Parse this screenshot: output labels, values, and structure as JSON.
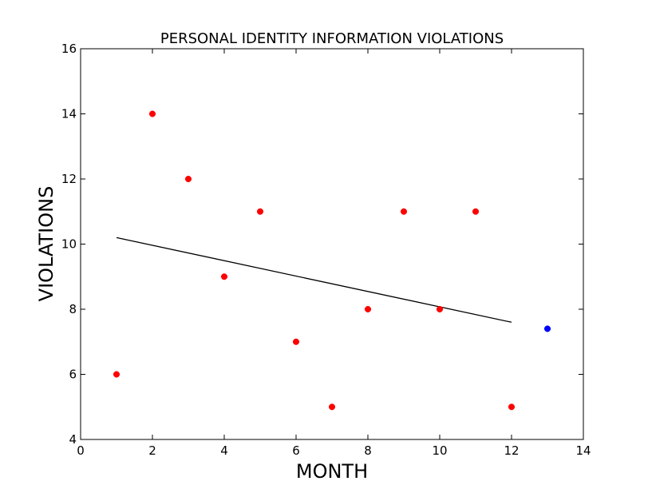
{
  "chart_data": {
    "type": "scatter",
    "title": "PERSONAL IDENTITY INFORMATION VIOLATIONS",
    "xlabel": "MONTH",
    "ylabel": "VIOLATIONS",
    "xlim": [
      0,
      14
    ],
    "ylim": [
      4,
      16
    ],
    "xticks": [
      0,
      2,
      4,
      6,
      8,
      10,
      12,
      14
    ],
    "yticks": [
      4,
      6,
      8,
      10,
      12,
      14,
      16
    ],
    "grid": false,
    "series": [
      {
        "color": "#ff0000",
        "points": [
          {
            "x": 1,
            "y": 6
          },
          {
            "x": 2,
            "y": 14
          },
          {
            "x": 3,
            "y": 12
          },
          {
            "x": 4,
            "y": 9
          },
          {
            "x": 5,
            "y": 11
          },
          {
            "x": 6,
            "y": 7
          },
          {
            "x": 7,
            "y": 5
          },
          {
            "x": 8,
            "y": 8
          },
          {
            "x": 9,
            "y": 11
          },
          {
            "x": 10,
            "y": 8
          },
          {
            "x": 11,
            "y": 11
          },
          {
            "x": 12,
            "y": 5
          }
        ]
      },
      {
        "color": "#0000ff",
        "points": [
          {
            "x": 13,
            "y": 7.4
          }
        ]
      }
    ],
    "trend_line": {
      "color": "#000000",
      "points": [
        {
          "x": 1,
          "y": 10.2
        },
        {
          "x": 12,
          "y": 7.6
        }
      ]
    }
  }
}
